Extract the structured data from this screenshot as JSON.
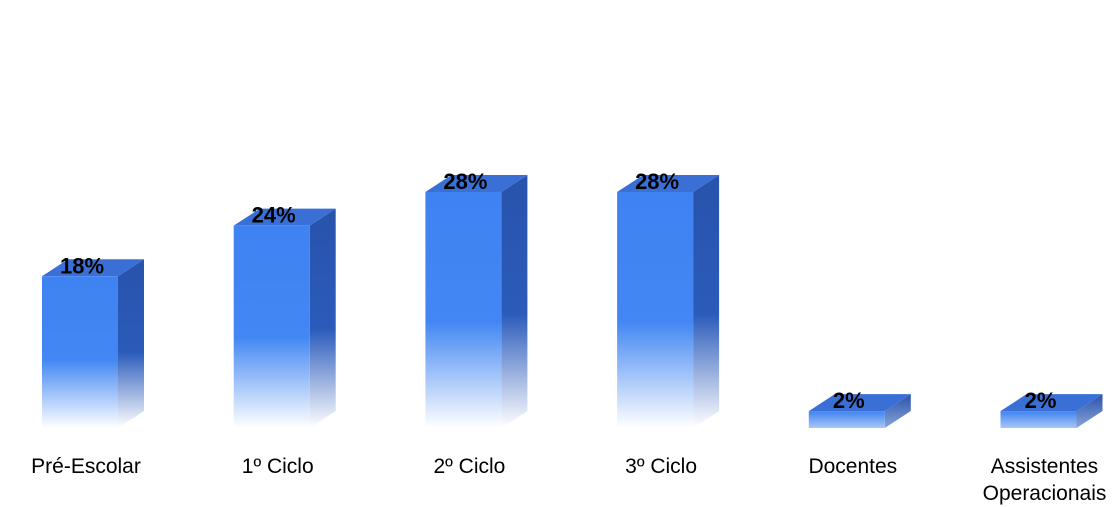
{
  "chart_data": {
    "type": "bar",
    "style": "3d-column",
    "categories": [
      [
        "Pré-Escolar"
      ],
      [
        "1º Ciclo"
      ],
      [
        "2º Ciclo"
      ],
      [
        "3º Ciclo"
      ],
      [
        "Docentes"
      ],
      [
        "Assistentes",
        "Operacionais"
      ]
    ],
    "values": [
      18,
      24,
      28,
      28,
      2,
      2
    ],
    "value_labels": [
      "18%",
      "24%",
      "28%",
      "28%",
      "2%",
      "2%"
    ],
    "unit": "%",
    "ylim": [
      0,
      30
    ],
    "grid": false,
    "legend": "none",
    "colors": {
      "front_top": "#3d7ff0",
      "front_bottom": "#ffffff",
      "side": "#2752a8",
      "top": "#3a6fd6"
    }
  }
}
